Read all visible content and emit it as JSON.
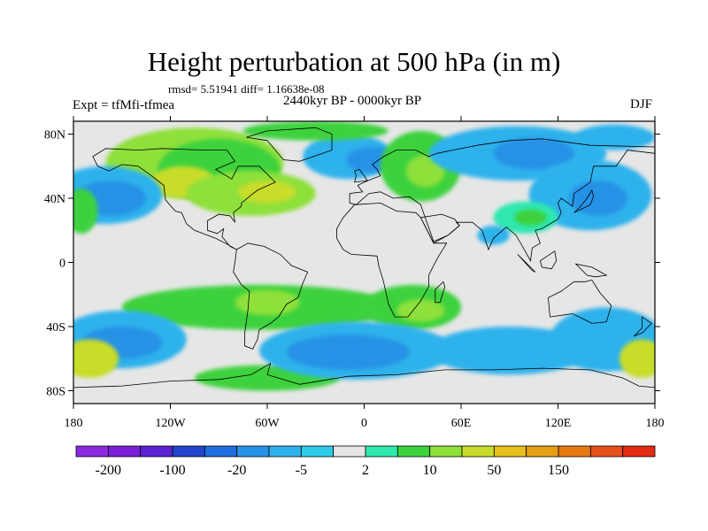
{
  "title": "Height perturbation at 500 hPa (in m)",
  "stats_line": "rmsd= 5.51941 diff= 1.16638e-08",
  "left_label": "Expt = tfMfi-tfmea",
  "center_label": "2440kyr BP - 0000kyr BP",
  "right_label": "DJF",
  "lat_ticks": [
    {
      "label": "80N",
      "lat": 80
    },
    {
      "label": "40N",
      "lat": 40
    },
    {
      "label": "0",
      "lat": 0
    },
    {
      "label": "40S",
      "lat": -40
    },
    {
      "label": "80S",
      "lat": -80
    }
  ],
  "lon_ticks": [
    {
      "label": "180",
      "lon": -180
    },
    {
      "label": "120W",
      "lon": -120
    },
    {
      "label": "60W",
      "lon": -60
    },
    {
      "label": "0",
      "lon": 0
    },
    {
      "label": "60E",
      "lon": 60
    },
    {
      "label": "120E",
      "lon": 120
    },
    {
      "label": "180",
      "lon": 180
    }
  ],
  "colorbar": {
    "colors": [
      "#8a2be2",
      "#7a1ed6",
      "#5a22d0",
      "#2244cc",
      "#1e6ee0",
      "#2892e6",
      "#2fb2ec",
      "#2ecbe8",
      "#e6e6e6",
      "#2ee8b0",
      "#3cd23c",
      "#8ee03a",
      "#c8dc2a",
      "#e6c01e",
      "#e6a014",
      "#e67a10",
      "#e6501a",
      "#e22a14"
    ],
    "labels": [
      {
        "text": "-200",
        "boundary": 1
      },
      {
        "text": "-100",
        "boundary": 3
      },
      {
        "text": "-20",
        "boundary": 5
      },
      {
        "text": "-5",
        "boundary": 7
      },
      {
        "text": "2",
        "boundary": 9
      },
      {
        "text": "10",
        "boundary": 11
      },
      {
        "text": "50",
        "boundary": 13
      },
      {
        "text": "150",
        "boundary": 15
      }
    ]
  },
  "field_blobs": [
    {
      "lon": -105,
      "lat": 62,
      "rlon": 55,
      "rlat": 22,
      "color": "#8ee03a"
    },
    {
      "lon": -90,
      "lat": 57,
      "rlon": 38,
      "rlat": 20,
      "color": "#3cd23c"
    },
    {
      "lon": -112,
      "lat": 50,
      "rlon": 20,
      "rlat": 10,
      "color": "#c8dc2a"
    },
    {
      "lon": -70,
      "lat": 43,
      "rlon": 40,
      "rlat": 14,
      "color": "#8ee03a"
    },
    {
      "lon": -60,
      "lat": 44,
      "rlon": 18,
      "rlat": 7,
      "color": "#c8dc2a"
    },
    {
      "lon": -160,
      "lat": 42,
      "rlon": 35,
      "rlat": 18,
      "color": "#2fb2ec"
    },
    {
      "lon": -157,
      "lat": 40,
      "rlon": 22,
      "rlat": 11,
      "color": "#2892e6"
    },
    {
      "lon": -10,
      "lat": 66,
      "rlon": 28,
      "rlat": 14,
      "color": "#2fb2ec"
    },
    {
      "lon": 5,
      "lat": 64,
      "rlon": 16,
      "rlat": 8,
      "color": "#2892e6"
    },
    {
      "lon": -30,
      "lat": 82,
      "rlon": 45,
      "rlat": 6,
      "color": "#3cd23c"
    },
    {
      "lon": 35,
      "lat": 60,
      "rlon": 25,
      "rlat": 22,
      "color": "#3cd23c"
    },
    {
      "lon": 38,
      "lat": 57,
      "rlon": 12,
      "rlat": 10,
      "color": "#8ee03a"
    },
    {
      "lon": 95,
      "lat": 68,
      "rlon": 55,
      "rlat": 17,
      "color": "#2fb2ec"
    },
    {
      "lon": 105,
      "lat": 68,
      "rlon": 25,
      "rlat": 10,
      "color": "#2892e6"
    },
    {
      "lon": 140,
      "lat": 42,
      "rlon": 38,
      "rlat": 22,
      "color": "#2fb2ec"
    },
    {
      "lon": 145,
      "lat": 40,
      "rlon": 18,
      "rlat": 11,
      "color": "#2892e6"
    },
    {
      "lon": 155,
      "lat": 78,
      "rlon": 25,
      "rlat": 8,
      "color": "#2fb2ec"
    },
    {
      "lon": 100,
      "lat": 28,
      "rlon": 20,
      "rlat": 10,
      "color": "#2ee8b0"
    },
    {
      "lon": 103,
      "lat": 28,
      "rlon": 10,
      "rlat": 5,
      "color": "#3cd23c"
    },
    {
      "lon": 80,
      "lat": 17,
      "rlon": 10,
      "rlat": 6,
      "color": "#2fb2ec"
    },
    {
      "lon": -175,
      "lat": 32,
      "rlon": 10,
      "rlat": 14,
      "color": "#3cd23c"
    },
    {
      "lon": -65,
      "lat": -28,
      "rlon": 85,
      "rlat": 14,
      "color": "#3cd23c"
    },
    {
      "lon": -60,
      "lat": -25,
      "rlon": 20,
      "rlat": 8,
      "color": "#8ee03a"
    },
    {
      "lon": 30,
      "lat": -28,
      "rlon": 30,
      "rlat": 14,
      "color": "#3cd23c"
    },
    {
      "lon": 35,
      "lat": -30,
      "rlon": 15,
      "rlat": 7,
      "color": "#8ee03a"
    },
    {
      "lon": -150,
      "lat": -48,
      "rlon": 40,
      "rlat": 18,
      "color": "#2fb2ec"
    },
    {
      "lon": -150,
      "lat": -50,
      "rlon": 25,
      "rlat": 10,
      "color": "#2892e6"
    },
    {
      "lon": -170,
      "lat": -60,
      "rlon": 18,
      "rlat": 12,
      "color": "#c8dc2a"
    },
    {
      "lon": -60,
      "lat": -72,
      "rlon": 45,
      "rlat": 8,
      "color": "#3cd23c"
    },
    {
      "lon": -5,
      "lat": -55,
      "rlon": 60,
      "rlat": 18,
      "color": "#2fb2ec"
    },
    {
      "lon": -10,
      "lat": -56,
      "rlon": 38,
      "rlat": 11,
      "color": "#2892e6"
    },
    {
      "lon": 90,
      "lat": -55,
      "rlon": 50,
      "rlat": 15,
      "color": "#2fb2ec"
    },
    {
      "lon": 150,
      "lat": -48,
      "rlon": 35,
      "rlat": 20,
      "color": "#2fb2ec"
    },
    {
      "lon": 172,
      "lat": -60,
      "rlon": 14,
      "rlat": 12,
      "color": "#c8dc2a"
    }
  ],
  "coastlines": [
    {
      "name": "north-america",
      "points": [
        [
          -168,
          66
        ],
        [
          -160,
          71
        ],
        [
          -140,
          70
        ],
        [
          -125,
          71
        ],
        [
          -100,
          70
        ],
        [
          -85,
          70
        ],
        [
          -80,
          63
        ],
        [
          -92,
          58
        ],
        [
          -82,
          52
        ],
        [
          -78,
          60
        ],
        [
          -65,
          60
        ],
        [
          -60,
          55
        ],
        [
          -55,
          50
        ],
        [
          -66,
          45
        ],
        [
          -70,
          42
        ],
        [
          -76,
          37
        ],
        [
          -76,
          35
        ],
        [
          -81,
          31
        ],
        [
          -80,
          25
        ],
        [
          -83,
          29
        ],
        [
          -90,
          30
        ],
        [
          -97,
          26
        ],
        [
          -97,
          20
        ],
        [
          -91,
          18
        ],
        [
          -87,
          21
        ],
        [
          -88,
          16
        ],
        [
          -83,
          10
        ],
        [
          -79,
          8
        ],
        [
          -86,
          12
        ],
        [
          -92,
          15
        ],
        [
          -105,
          20
        ],
        [
          -110,
          24
        ],
        [
          -113,
          31
        ],
        [
          -117,
          32
        ],
        [
          -123,
          39
        ],
        [
          -124,
          48
        ],
        [
          -133,
          55
        ],
        [
          -140,
          60
        ],
        [
          -150,
          61
        ],
        [
          -158,
          57
        ],
        [
          -165,
          60
        ],
        [
          -168,
          66
        ]
      ]
    },
    {
      "name": "greenland",
      "points": [
        [
          -73,
          78
        ],
        [
          -60,
          82
        ],
        [
          -30,
          84
        ],
        [
          -20,
          80
        ],
        [
          -20,
          70
        ],
        [
          -40,
          63
        ],
        [
          -50,
          64
        ],
        [
          -55,
          70
        ],
        [
          -60,
          76
        ],
        [
          -73,
          78
        ]
      ]
    },
    {
      "name": "south-america",
      "points": [
        [
          -79,
          8
        ],
        [
          -72,
          12
        ],
        [
          -62,
          10
        ],
        [
          -52,
          5
        ],
        [
          -45,
          -2
        ],
        [
          -35,
          -6
        ],
        [
          -38,
          -13
        ],
        [
          -41,
          -22
        ],
        [
          -48,
          -26
        ],
        [
          -53,
          -34
        ],
        [
          -58,
          -38
        ],
        [
          -65,
          -42
        ],
        [
          -66,
          -48
        ],
        [
          -69,
          -54
        ],
        [
          -74,
          -52
        ],
        [
          -74,
          -44
        ],
        [
          -72,
          -30
        ],
        [
          -71,
          -18
        ],
        [
          -76,
          -14
        ],
        [
          -81,
          -6
        ],
        [
          -80,
          0
        ],
        [
          -79,
          8
        ]
      ]
    },
    {
      "name": "africa",
      "points": [
        [
          -17,
          21
        ],
        [
          -13,
          28
        ],
        [
          -6,
          36
        ],
        [
          10,
          37
        ],
        [
          20,
          32
        ],
        [
          32,
          31
        ],
        [
          35,
          28
        ],
        [
          43,
          12
        ],
        [
          51,
          12
        ],
        [
          45,
          2
        ],
        [
          40,
          -8
        ],
        [
          40,
          -15
        ],
        [
          35,
          -24
        ],
        [
          27,
          -34
        ],
        [
          19,
          -34
        ],
        [
          15,
          -26
        ],
        [
          12,
          -12
        ],
        [
          9,
          -2
        ],
        [
          8,
          4
        ],
        [
          -8,
          5
        ],
        [
          -13,
          8
        ],
        [
          -17,
          15
        ],
        [
          -17,
          21
        ]
      ]
    },
    {
      "name": "eurasia",
      "points": [
        [
          -9,
          43
        ],
        [
          -9,
          37
        ],
        [
          -5,
          36
        ],
        [
          3,
          43
        ],
        [
          10,
          44
        ],
        [
          18,
          40
        ],
        [
          28,
          41
        ],
        [
          35,
          36
        ],
        [
          36,
          33
        ],
        [
          43,
          13
        ],
        [
          52,
          17
        ],
        [
          59,
          23
        ],
        [
          57,
          25
        ],
        [
          67,
          25
        ],
        [
          73,
          20
        ],
        [
          77,
          8
        ],
        [
          80,
          15
        ],
        [
          88,
          22
        ],
        [
          94,
          17
        ],
        [
          98,
          10
        ],
        [
          103,
          1
        ],
        [
          104,
          9
        ],
        [
          109,
          12
        ],
        [
          106,
          20
        ],
        [
          110,
          21
        ],
        [
          120,
          27
        ],
        [
          122,
          31
        ],
        [
          120,
          37
        ],
        [
          122,
          40
        ],
        [
          129,
          35
        ],
        [
          130,
          43
        ],
        [
          140,
          50
        ],
        [
          142,
          60
        ],
        [
          156,
          60
        ],
        [
          163,
          70
        ],
        [
          180,
          68
        ],
        [
          180,
          72
        ],
        [
          140,
          73
        ],
        [
          110,
          77
        ],
        [
          90,
          76
        ],
        [
          70,
          73
        ],
        [
          55,
          70
        ],
        [
          45,
          68
        ],
        [
          40,
          66
        ],
        [
          32,
          70
        ],
        [
          20,
          70
        ],
        [
          12,
          66
        ],
        [
          5,
          61
        ],
        [
          8,
          58
        ],
        [
          10,
          54
        ],
        [
          5,
          52
        ],
        [
          0,
          50
        ],
        [
          -4,
          48
        ],
        [
          -1,
          44
        ],
        [
          -9,
          43
        ]
      ]
    },
    {
      "name": "arabia",
      "points": [
        [
          35,
          28
        ],
        [
          43,
          12
        ],
        [
          52,
          17
        ],
        [
          59,
          23
        ],
        [
          56,
          27
        ],
        [
          48,
          30
        ],
        [
          35,
          28
        ]
      ]
    },
    {
      "name": "uk",
      "points": [
        [
          -6,
          50
        ],
        [
          2,
          51
        ],
        [
          0,
          54
        ],
        [
          -3,
          58
        ],
        [
          -6,
          57
        ],
        [
          -5,
          54
        ],
        [
          -6,
          50
        ]
      ]
    },
    {
      "name": "japan",
      "points": [
        [
          130,
          31
        ],
        [
          136,
          34
        ],
        [
          140,
          36
        ],
        [
          142,
          41
        ],
        [
          141,
          45
        ],
        [
          138,
          40
        ],
        [
          134,
          35
        ],
        [
          130,
          31
        ]
      ]
    },
    {
      "name": "madagascar",
      "points": [
        [
          44,
          -25
        ],
        [
          47,
          -25
        ],
        [
          50,
          -15
        ],
        [
          49,
          -12
        ],
        [
          44,
          -17
        ],
        [
          44,
          -25
        ]
      ]
    },
    {
      "name": "borneo",
      "points": [
        [
          109,
          1
        ],
        [
          118,
          7
        ],
        [
          119,
          1
        ],
        [
          116,
          -4
        ],
        [
          110,
          -3
        ],
        [
          109,
          1
        ]
      ]
    },
    {
      "name": "sumatra",
      "points": [
        [
          95,
          5
        ],
        [
          104,
          -5
        ],
        [
          106,
          -6
        ],
        [
          100,
          0
        ],
        [
          95,
          5
        ]
      ]
    },
    {
      "name": "new-guinea",
      "points": [
        [
          131,
          -1
        ],
        [
          141,
          -3
        ],
        [
          150,
          -8
        ],
        [
          143,
          -9
        ],
        [
          138,
          -8
        ],
        [
          131,
          -1
        ]
      ]
    },
    {
      "name": "australia",
      "points": [
        [
          114,
          -22
        ],
        [
          122,
          -18
        ],
        [
          130,
          -12
        ],
        [
          137,
          -12
        ],
        [
          141,
          -11
        ],
        [
          146,
          -19
        ],
        [
          153,
          -27
        ],
        [
          150,
          -37
        ],
        [
          141,
          -38
        ],
        [
          135,
          -35
        ],
        [
          129,
          -32
        ],
        [
          115,
          -34
        ],
        [
          114,
          -22
        ]
      ]
    },
    {
      "name": "new-zealand",
      "points": [
        [
          172,
          -34
        ],
        [
          178,
          -38
        ],
        [
          175,
          -41
        ],
        [
          172,
          -44
        ],
        [
          167,
          -46
        ],
        [
          172,
          -41
        ],
        [
          172,
          -34
        ]
      ]
    },
    {
      "name": "antarctica",
      "points": [
        [
          -180,
          -78
        ],
        [
          -150,
          -77
        ],
        [
          -120,
          -74
        ],
        [
          -90,
          -73
        ],
        [
          -70,
          -70
        ],
        [
          -58,
          -63
        ],
        [
          -60,
          -70
        ],
        [
          -40,
          -76
        ],
        [
          -10,
          -71
        ],
        [
          20,
          -70
        ],
        [
          50,
          -67
        ],
        [
          80,
          -67
        ],
        [
          110,
          -66
        ],
        [
          140,
          -67
        ],
        [
          160,
          -72
        ],
        [
          170,
          -77
        ],
        [
          180,
          -78
        ]
      ]
    }
  ]
}
